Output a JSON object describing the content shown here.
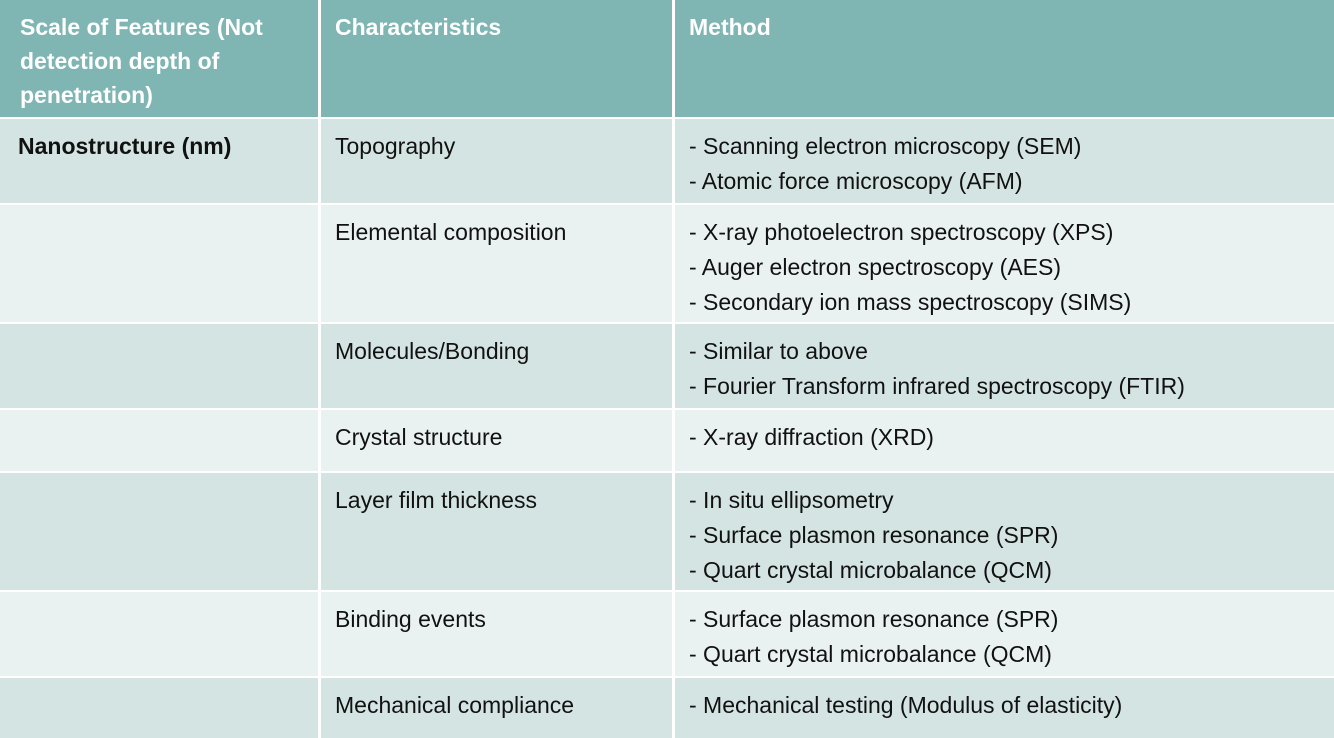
{
  "headers": [
    "Scale of Features (Not detection depth of penetration)",
    "Characteristics",
    "Method"
  ],
  "rows": [
    {
      "scale": "Nanostructure (nm)",
      "characteristic": "Topography",
      "methods": [
        "- Scanning electron microscopy (SEM)",
        "- Atomic force microscopy (AFM)"
      ]
    },
    {
      "scale": "",
      "characteristic": "Elemental composition",
      "methods": [
        "- X-ray photoelectron spectroscopy (XPS)",
        "- Auger electron spectroscopy (AES)",
        "- Secondary ion mass spectroscopy (SIMS)"
      ]
    },
    {
      "scale": "",
      "characteristic": "Molecules/Bonding",
      "methods": [
        "- Similar to above",
        "- Fourier Transform infrared spectroscopy (FTIR)"
      ]
    },
    {
      "scale": "",
      "characteristic": "Crystal structure",
      "methods": [
        "- X-ray diffraction (XRD)"
      ]
    },
    {
      "scale": "",
      "characteristic": "Layer film thickness",
      "methods": [
        "- In situ ellipsometry",
        "- Surface plasmon resonance (SPR)",
        "- Quart crystal microbalance (QCM)"
      ]
    },
    {
      "scale": "",
      "characteristic": "Binding events",
      "methods": [
        "- Surface plasmon resonance (SPR)",
        "- Quart crystal microbalance (QCM)"
      ]
    },
    {
      "scale": "",
      "characteristic": "Mechanical compliance",
      "methods": [
        "- Mechanical testing (Modulus of elasticity)"
      ]
    }
  ],
  "colors": {
    "header_bg": "#7fb5b3",
    "row_odd_bg": "#d4e4e3",
    "row_even_bg": "#eaf2f1"
  }
}
